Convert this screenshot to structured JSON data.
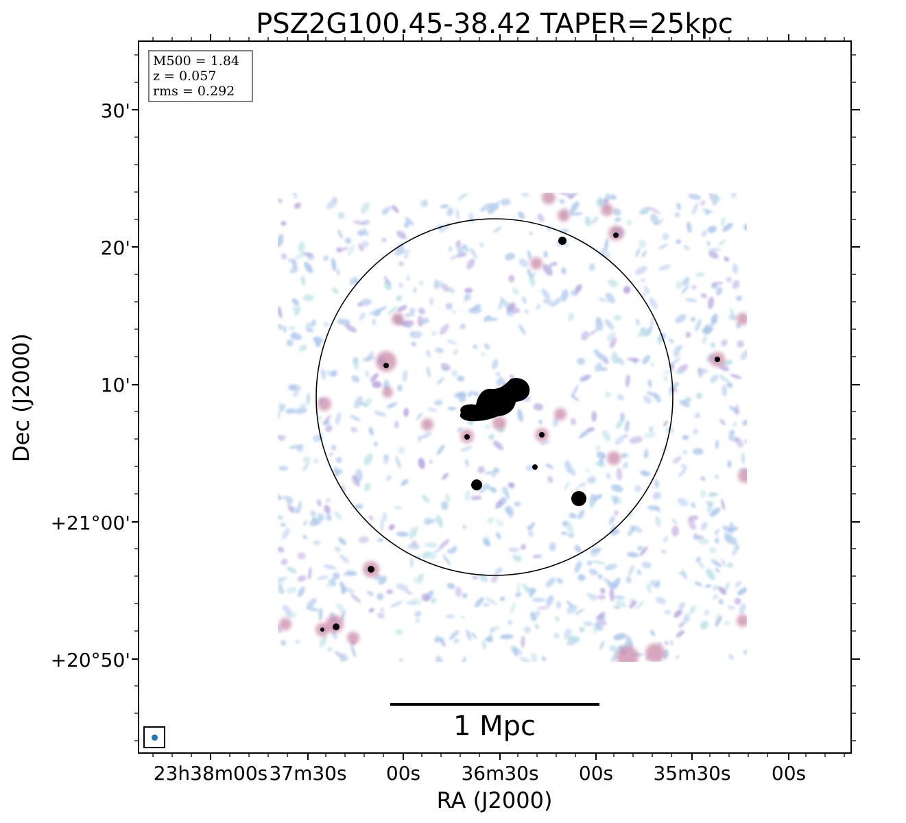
{
  "figure": {
    "title": "PSZ2G100.45-38.42 TAPER=25kpc",
    "xlabel": "RA (J2000)",
    "ylabel": "Dec (J2000)",
    "info_box": {
      "line1": "M500 = 1.84",
      "line2": "z = 0.057",
      "line3": "rms = 0.292"
    },
    "scale_bar_label": "1 Mpc",
    "x_tick_labels": [
      "23h38m00s",
      "37m30s",
      "00s",
      "36m30s",
      "00s",
      "35m30s",
      "00s"
    ],
    "y_tick_labels": [
      "30'",
      "20'",
      "10'",
      "+21°00'",
      "+20°50'"
    ],
    "colors": {
      "noise_blue": "#a9c6ea",
      "noise_cyan": "#b9e0e6",
      "noise_purple": "#b6a0dc",
      "emission_pink": "#c98aa8",
      "source_core": "#000000",
      "beam_marker": "#1f77b4"
    }
  }
}
